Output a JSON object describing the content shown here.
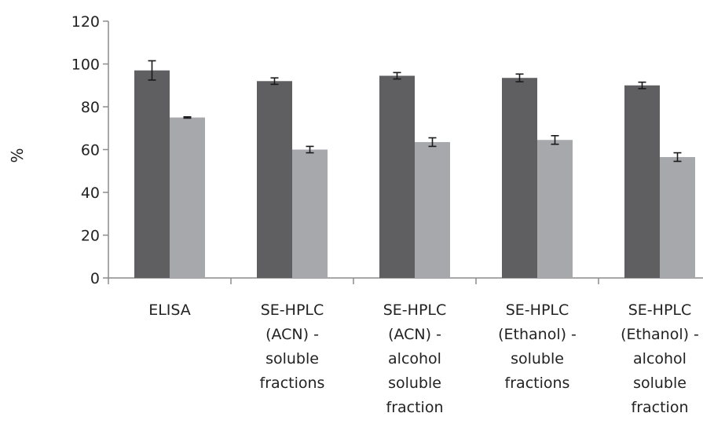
{
  "chart_data": {
    "type": "bar",
    "ylabel": "%",
    "xlabel": "",
    "title": "",
    "ylim": [
      0,
      120
    ],
    "yticks": [
      "0",
      "20",
      "40",
      "60",
      "80",
      "100",
      "120"
    ],
    "categories": [
      "ELISA",
      "SE-HPLC (ACN) - soluble fractions",
      "SE-HPLC (ACN) - alcohol soluble fraction",
      "SE-HPLC (Ethanol) - soluble fractions",
      "SE-HPLC (Ethanol) - alcohol soluble fraction"
    ],
    "category_label_lines": [
      [
        "ELISA"
      ],
      [
        "SE-HPLC",
        "(ACN) -",
        "soluble",
        "fractions"
      ],
      [
        "SE-HPLC",
        "(ACN) -",
        "alcohol",
        "soluble",
        "fraction"
      ],
      [
        "SE-HPLC",
        "(Ethanol) -",
        "soluble",
        "fractions"
      ],
      [
        "SE-HPLC",
        "(Ethanol) -",
        "alcohol",
        "soluble",
        "fraction"
      ]
    ],
    "series": [
      {
        "color": "#5f5f61",
        "values": [
          97,
          92,
          94.5,
          93.5,
          90
        ],
        "errors": [
          4.5,
          1.5,
          1.5,
          1.8,
          1.5
        ]
      },
      {
        "color": "#a6a8ab",
        "values": [
          75,
          60,
          63.5,
          64.5,
          56.5
        ],
        "errors": [
          0.3,
          1.5,
          2,
          2,
          2
        ]
      }
    ],
    "grid": false,
    "legend": "none"
  }
}
